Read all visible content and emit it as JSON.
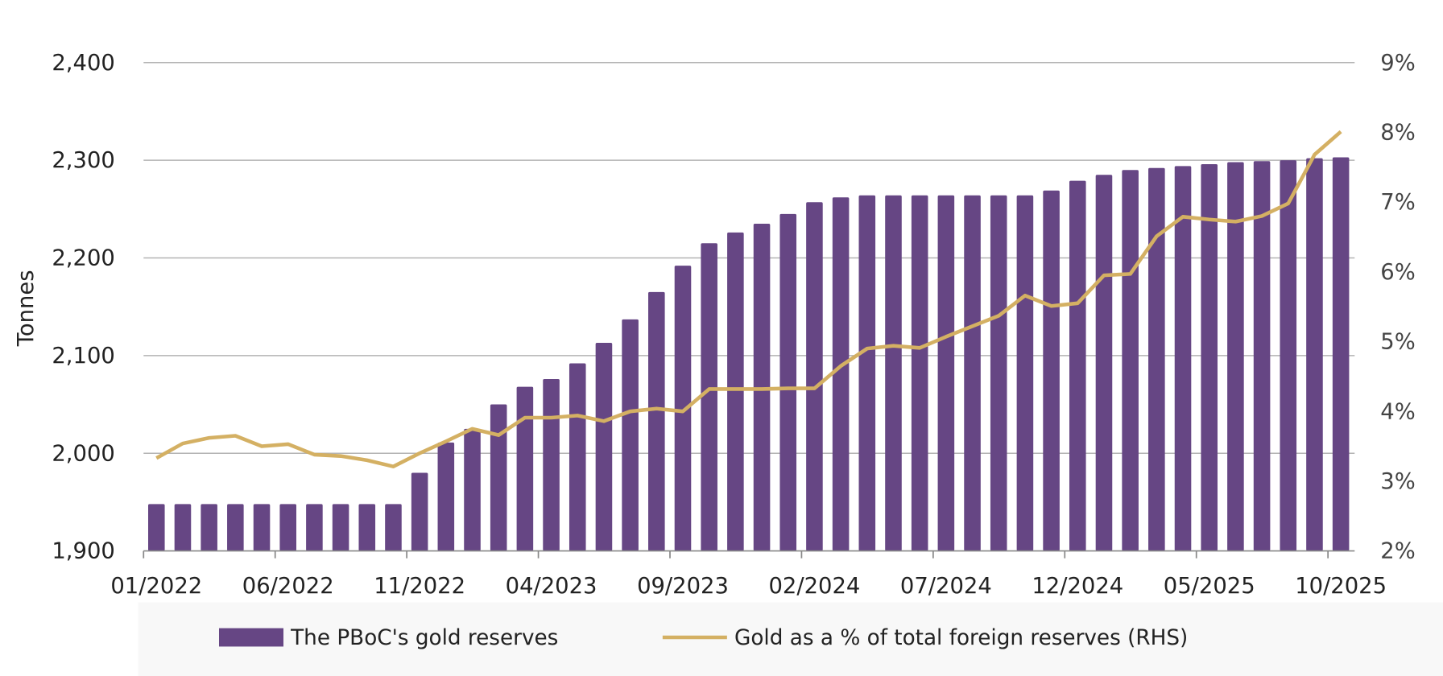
{
  "chart_data": {
    "type": "bar",
    "title": "",
    "ylabel": "Tonnes",
    "ylim": [
      1900,
      2400
    ],
    "y_ticks": [
      "1,900",
      "2,000",
      "2,100",
      "2,200",
      "2,300",
      "2,400"
    ],
    "y2lim": [
      2,
      9
    ],
    "y2_ticks": [
      "2%",
      "3%",
      "4%",
      "5%",
      "6%",
      "7%",
      "8%",
      "9%"
    ],
    "x_tick_labels": [
      "01/2022",
      "06/2022",
      "11/2022",
      "04/2023",
      "09/2023",
      "02/2024",
      "07/2024",
      "12/2024",
      "05/2025",
      "10/2025"
    ],
    "grid": "horizontal",
    "legend_position": "bottom",
    "colors": {
      "bars": "#664684",
      "line": "#D4B063",
      "grid": "#b3b3b3"
    },
    "categories": [
      "01/2022",
      "02/2022",
      "03/2022",
      "04/2022",
      "05/2022",
      "06/2022",
      "07/2022",
      "08/2022",
      "09/2022",
      "10/2022",
      "11/2022",
      "12/2022",
      "01/2023",
      "02/2023",
      "03/2023",
      "04/2023",
      "05/2023",
      "06/2023",
      "07/2023",
      "08/2023",
      "09/2023",
      "10/2023",
      "11/2023",
      "12/2023",
      "01/2024",
      "02/2024",
      "03/2024",
      "04/2024",
      "05/2024",
      "06/2024",
      "07/2024",
      "08/2024",
      "09/2024",
      "10/2024",
      "11/2024",
      "12/2024",
      "01/2025",
      "02/2025",
      "03/2025",
      "04/2025",
      "05/2025",
      "06/2025",
      "07/2025",
      "08/2025",
      "09/2025",
      "10/2025"
    ],
    "series": [
      {
        "name": "The PBoC's gold reserves",
        "type": "bar",
        "axis": "left",
        "values": [
          1948,
          1948,
          1948,
          1948,
          1948,
          1948,
          1948,
          1948,
          1948,
          1948,
          1980,
          2011,
          2025,
          2050,
          2068,
          2076,
          2092,
          2113,
          2137,
          2165,
          2192,
          2215,
          2226,
          2235,
          2245,
          2257,
          2262,
          2264,
          2264,
          2264,
          2264,
          2264,
          2264,
          2264,
          2269,
          2279,
          2285,
          2290,
          2292,
          2294,
          2296,
          2298,
          2299,
          2300,
          2302,
          2303
        ]
      },
      {
        "name": "Gold as a % of total foreign reserves (RHS)",
        "type": "line",
        "axis": "right",
        "values": [
          3.33,
          3.54,
          3.62,
          3.65,
          3.5,
          3.53,
          3.38,
          3.36,
          3.3,
          3.21,
          3.4,
          3.57,
          3.75,
          3.66,
          3.91,
          3.91,
          3.94,
          3.86,
          4.0,
          4.04,
          4.0,
          4.32,
          4.32,
          4.32,
          4.33,
          4.33,
          4.65,
          4.9,
          4.94,
          4.91,
          5.07,
          5.22,
          5.37,
          5.66,
          5.51,
          5.55,
          5.95,
          5.97,
          6.51,
          6.79,
          6.75,
          6.72,
          6.8,
          6.98,
          7.68,
          8.01
        ]
      }
    ]
  }
}
